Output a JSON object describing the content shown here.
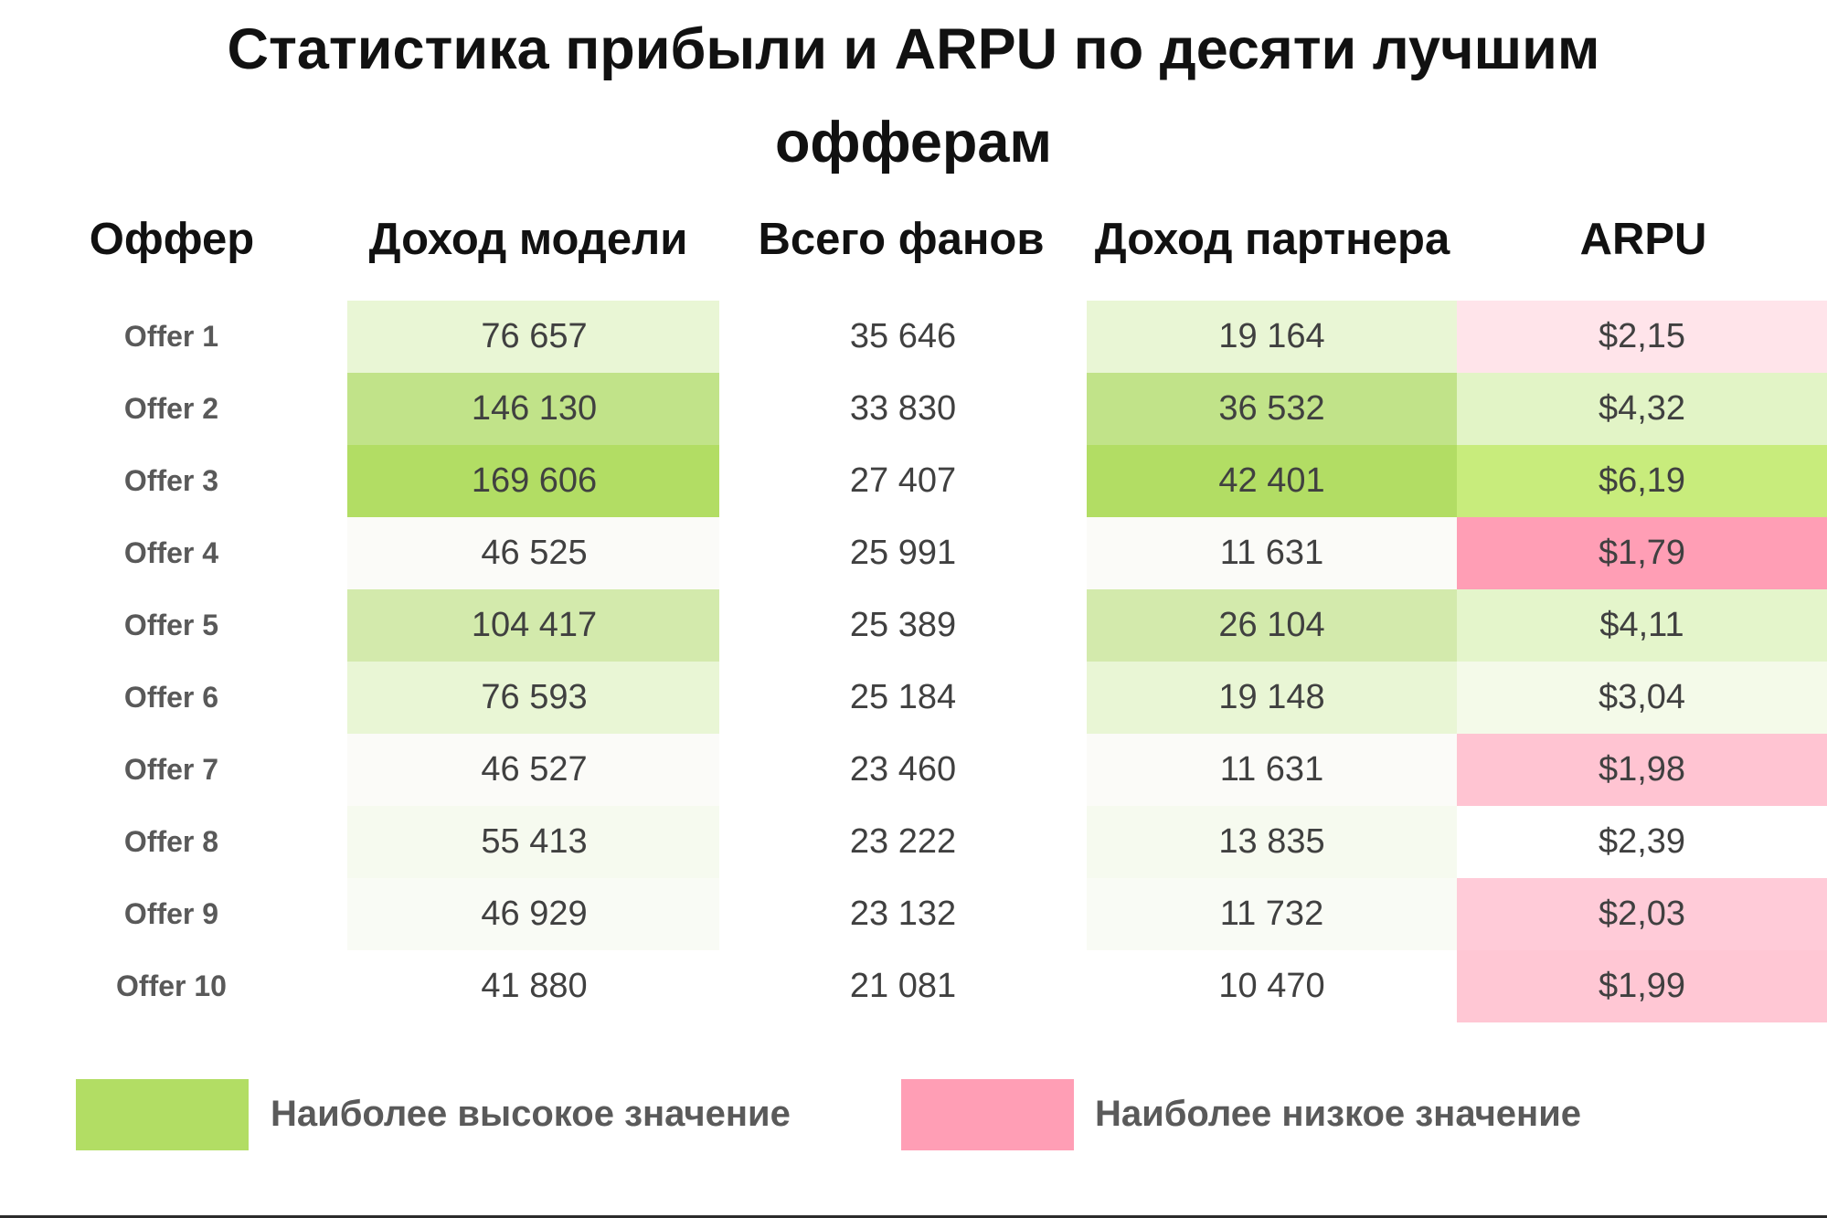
{
  "chart_data": {
    "type": "table",
    "title": "Статистика прибыли и ARPU по десяти лучшим офферам",
    "title_lines": [
      "Статистика прибыли и ARPU по десяти лучшим",
      "офферам"
    ],
    "columns": [
      "Оффер",
      "Доход модели",
      "Всего фанов",
      "Доход партнера",
      "ARPU"
    ],
    "rows": [
      {
        "offer": "Offer 1",
        "model_income": "76 657",
        "total_fans": "35 646",
        "partner_income": "19 164",
        "arpu": "$2,15"
      },
      {
        "offer": "Offer 2",
        "model_income": "146 130",
        "total_fans": "33 830",
        "partner_income": "36 532",
        "arpu": "$4,32"
      },
      {
        "offer": "Offer 3",
        "model_income": "169 606",
        "total_fans": "27 407",
        "partner_income": "42 401",
        "arpu": "$6,19"
      },
      {
        "offer": "Offer 4",
        "model_income": "46 525",
        "total_fans": "25 991",
        "partner_income": "11 631",
        "arpu": "$1,79"
      },
      {
        "offer": "Offer 5",
        "model_income": "104 417",
        "total_fans": "25 389",
        "partner_income": "26 104",
        "arpu": "$4,11"
      },
      {
        "offer": "Offer 6",
        "model_income": "76 593",
        "total_fans": "25 184",
        "partner_income": "19 148",
        "arpu": "$3,04"
      },
      {
        "offer": "Offer 7",
        "model_income": "46 527",
        "total_fans": "23 460",
        "partner_income": "11 631",
        "arpu": "$1,98"
      },
      {
        "offer": "Offer 8",
        "model_income": "55 413",
        "total_fans": "23 222",
        "partner_income": "13 835",
        "arpu": "$2,39"
      },
      {
        "offer": "Offer 9",
        "model_income": "46 929",
        "total_fans": "23 132",
        "partner_income": "11 732",
        "arpu": "$2,03"
      },
      {
        "offer": "Offer 10",
        "model_income": "41 880",
        "total_fans": "21 081",
        "partner_income": "10 470",
        "arpu": "$1,99"
      }
    ],
    "cell_colors": {
      "model_income": [
        "#e9f6d5",
        "#c1e389",
        "#b2dd64",
        "#fbfbf8",
        "#d3eaac",
        "#e9f6d5",
        "#fbfbf8",
        "#f6faef",
        "#f9fbf5",
        "#ffffff"
      ],
      "total_fans": [
        "#ffffff",
        "#ffffff",
        "#ffffff",
        "#ffffff",
        "#ffffff",
        "#ffffff",
        "#ffffff",
        "#ffffff",
        "#ffffff",
        "#ffffff"
      ],
      "partner_income": [
        "#e9f6d5",
        "#c1e389",
        "#b2dd64",
        "#fbfbf8",
        "#d3eaac",
        "#e9f6d5",
        "#fbfbf8",
        "#f6faef",
        "#f9fbf5",
        "#ffffff"
      ],
      "arpu": [
        "#ffe4ea",
        "#e2f4c6",
        "#c8ec7c",
        "#ff9eb5",
        "#e4f5cb",
        "#f4fae9",
        "#ffc4d2",
        "#ffffff",
        "#ffcbd8",
        "#ffc7d4"
      ]
    },
    "legend": [
      {
        "label": "Наиболее высокое значение",
        "color": "#b2dd64"
      },
      {
        "label": "Наиболее низкое значение",
        "color": "#ff9eb5"
      }
    ]
  }
}
